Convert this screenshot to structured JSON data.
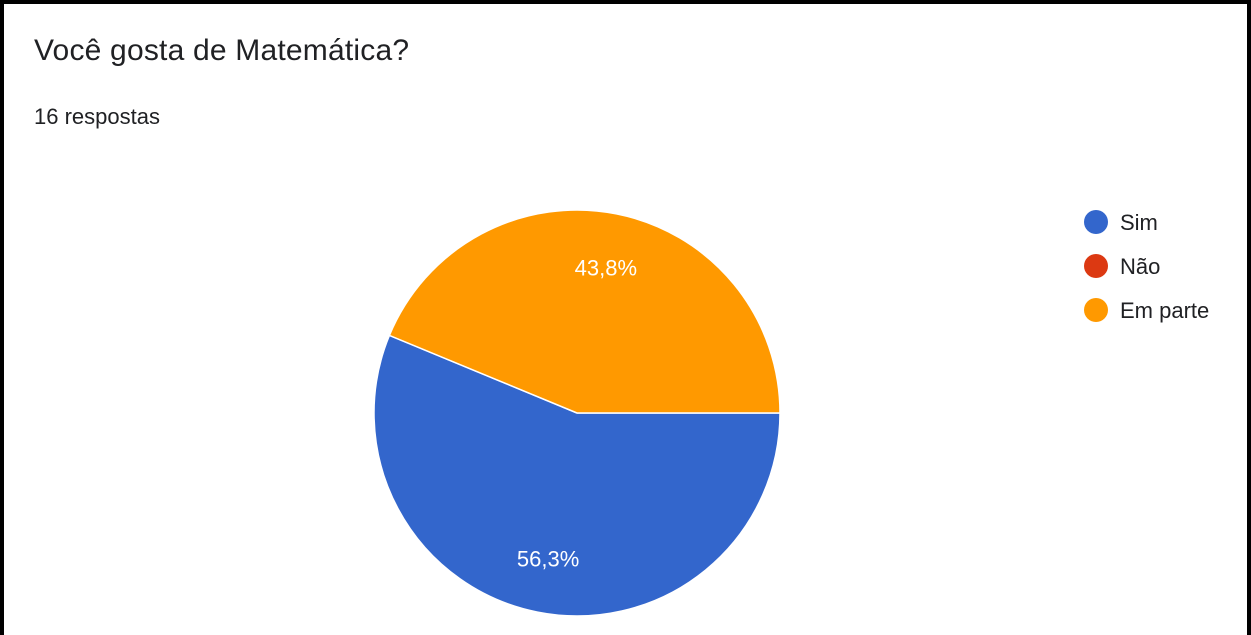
{
  "header": {
    "title": "Você gosta de Matemática?",
    "subtitle": "16 respostas"
  },
  "chart_data": {
    "type": "pie",
    "title": "Você gosta de Matemática?",
    "categories": [
      "Sim",
      "Não",
      "Em parte"
    ],
    "values": [
      56.3,
      0,
      43.8
    ],
    "labels": [
      "56,3%",
      "",
      "43,8%"
    ],
    "colors": [
      "#3366cc",
      "#dc3912",
      "#ff9900"
    ],
    "legend_position": "right"
  }
}
